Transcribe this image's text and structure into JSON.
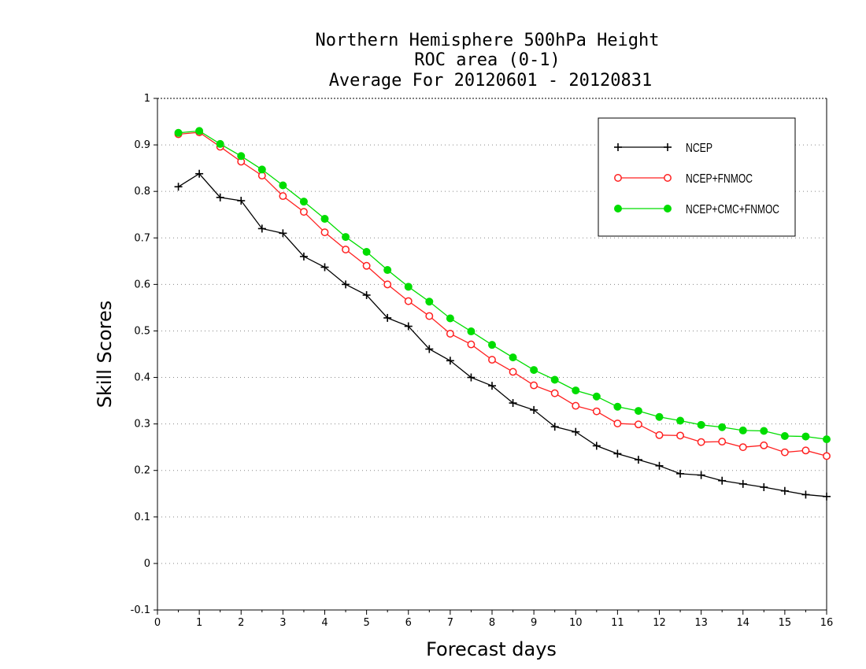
{
  "chart_data": {
    "type": "line",
    "title": [
      "Northern Hemisphere 500hPa Height",
      "ROC area (0-1)",
      "Average For 20120601 - 20120831"
    ],
    "xlabel": "Forecast days",
    "ylabel": "Skill Scores",
    "xlim": [
      0,
      16
    ],
    "ylim": [
      -0.1,
      1
    ],
    "xticks": [
      0,
      1,
      2,
      3,
      4,
      5,
      6,
      7,
      8,
      9,
      10,
      11,
      12,
      13,
      14,
      15,
      16
    ],
    "yticks": [
      -0.1,
      0,
      0.1,
      0.2,
      0.3,
      0.4,
      0.5,
      0.6,
      0.7,
      0.8,
      0.9,
      1
    ],
    "ytick_labels": [
      "-0.1",
      "0",
      "0.1",
      "0.2",
      "0.3",
      "0.4",
      "0.5",
      "0.6",
      "0.7",
      "0.8",
      "0.9",
      "1"
    ],
    "grid": "horizontal dotted",
    "legend_position": "top-right",
    "x": [
      0.5,
      1,
      1.5,
      2,
      2.5,
      3,
      3.5,
      4,
      4.5,
      5,
      5.5,
      6,
      6.5,
      7,
      7.5,
      8,
      8.5,
      9,
      9.5,
      10,
      10.5,
      11,
      11.5,
      12,
      12.5,
      13,
      13.5,
      14,
      14.5,
      15,
      15.5,
      16
    ],
    "series": [
      {
        "name": "NCEP",
        "color": "#000000",
        "marker": "plus",
        "values": [
          0.81,
          0.838,
          0.787,
          0.78,
          0.72,
          0.71,
          0.66,
          0.637,
          0.6,
          0.577,
          0.528,
          0.51,
          0.461,
          0.436,
          0.4,
          0.382,
          0.345,
          0.33,
          0.294,
          0.283,
          0.253,
          0.236,
          0.223,
          0.21,
          0.193,
          0.19,
          0.178,
          0.171,
          0.164,
          0.156,
          0.148,
          0.144
        ]
      },
      {
        "name": "NCEP+FNMOC",
        "color": "#ff2020",
        "marker": "open-circle",
        "values": [
          0.923,
          0.927,
          0.896,
          0.864,
          0.834,
          0.79,
          0.756,
          0.712,
          0.675,
          0.64,
          0.6,
          0.564,
          0.532,
          0.494,
          0.471,
          0.438,
          0.412,
          0.383,
          0.366,
          0.339,
          0.327,
          0.301,
          0.299,
          0.276,
          0.275,
          0.261,
          0.262,
          0.25,
          0.254,
          0.239,
          0.243,
          0.231
        ]
      },
      {
        "name": "NCEP+CMC+FNMOC",
        "color": "#00dd00",
        "marker": "filled-circle",
        "values": [
          0.926,
          0.93,
          0.902,
          0.876,
          0.847,
          0.813,
          0.778,
          0.741,
          0.702,
          0.67,
          0.631,
          0.595,
          0.563,
          0.527,
          0.499,
          0.47,
          0.443,
          0.416,
          0.395,
          0.372,
          0.359,
          0.337,
          0.328,
          0.315,
          0.307,
          0.298,
          0.293,
          0.286,
          0.285,
          0.274,
          0.273,
          0.267
        ]
      }
    ]
  }
}
